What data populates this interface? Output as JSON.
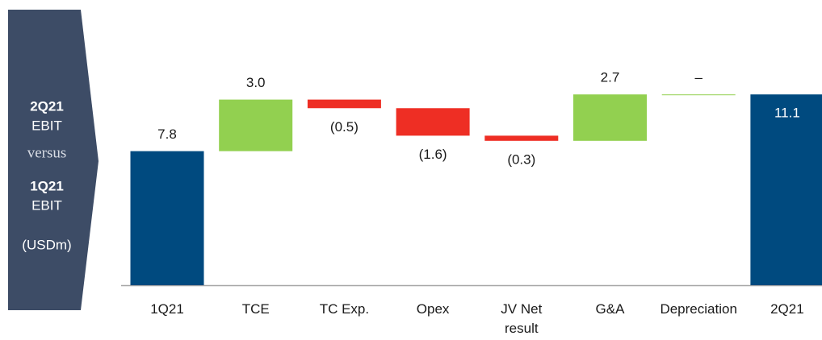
{
  "chart_data": {
    "type": "waterfall",
    "side_panel": [
      "2Q21",
      "EBIT",
      "versus",
      "1Q21",
      "EBIT",
      "(USDm)"
    ],
    "categories": [
      "1Q21",
      "TCE",
      "TC Exp.",
      "Opex",
      "JV Net\nresult",
      "G&A",
      "Depreciation",
      "2Q21"
    ],
    "values": [
      7.8,
      3.0,
      -0.5,
      -1.6,
      -0.3,
      2.7,
      0,
      11.1
    ],
    "value_labels": [
      "7.8",
      "3.0",
      "(0.5)",
      "(1.6)",
      "(0.3)",
      "2.7",
      "–",
      "11.1"
    ],
    "measures": [
      "total",
      "relative",
      "relative",
      "relative",
      "relative",
      "relative",
      "relative",
      "total"
    ],
    "colors": {
      "total": "#004a7f",
      "increase": "#92d050",
      "decrease": "#ee2e24"
    },
    "ylim": [
      0,
      12
    ]
  }
}
